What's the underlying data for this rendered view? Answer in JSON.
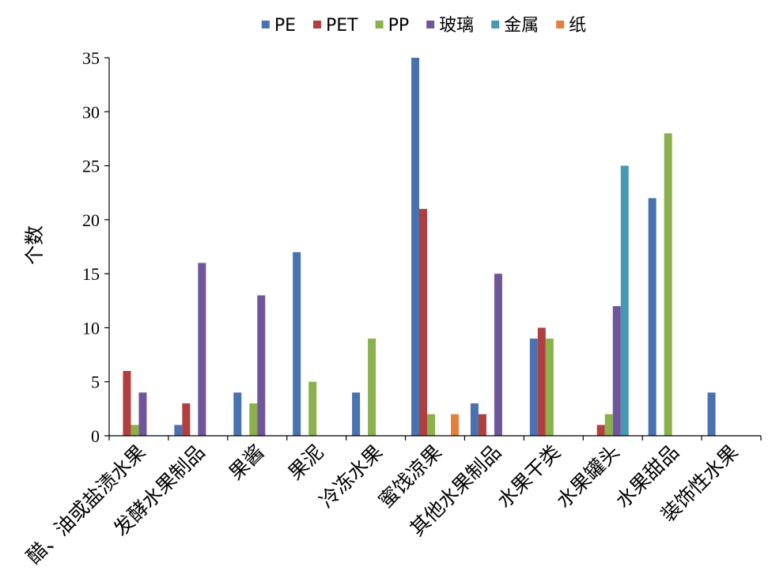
{
  "chart_data": {
    "type": "bar",
    "ylabel": "个数",
    "ylim": [
      0,
      35
    ],
    "yticks": [
      0,
      5,
      10,
      15,
      20,
      25,
      30,
      35
    ],
    "grid": false,
    "legend_position": "top",
    "categories": [
      "醋、油或盐渍水果",
      "发酵水果制品",
      "果酱",
      "果泥",
      "冷冻水果",
      "蜜饯凉果",
      "其他水果制品",
      "水果干类",
      "水果罐头",
      "水果甜品",
      "装饰性水果"
    ],
    "series": [
      {
        "name": "PE",
        "color": "#4A72B0",
        "values": [
          0,
          1,
          4,
          17,
          4,
          35,
          3,
          9,
          0,
          22,
          4
        ]
      },
      {
        "name": "PET",
        "color": "#B0403F",
        "values": [
          6,
          3,
          0,
          0,
          0,
          21,
          2,
          10,
          1,
          0,
          0
        ]
      },
      {
        "name": "PP",
        "color": "#8BB14D",
        "values": [
          1,
          0,
          3,
          5,
          9,
          2,
          0,
          9,
          2,
          28,
          0
        ]
      },
      {
        "name": "玻璃",
        "color": "#6F559A",
        "values": [
          4,
          16,
          13,
          0,
          0,
          0,
          15,
          0,
          12,
          0,
          0
        ]
      },
      {
        "name": "金属",
        "color": "#4599B1",
        "values": [
          0,
          0,
          0,
          0,
          0,
          0,
          0,
          0,
          25,
          0,
          0
        ]
      },
      {
        "name": "纸",
        "color": "#E4803C",
        "values": [
          0,
          0,
          0,
          0,
          0,
          2,
          0,
          0,
          0,
          0,
          0
        ]
      }
    ]
  }
}
